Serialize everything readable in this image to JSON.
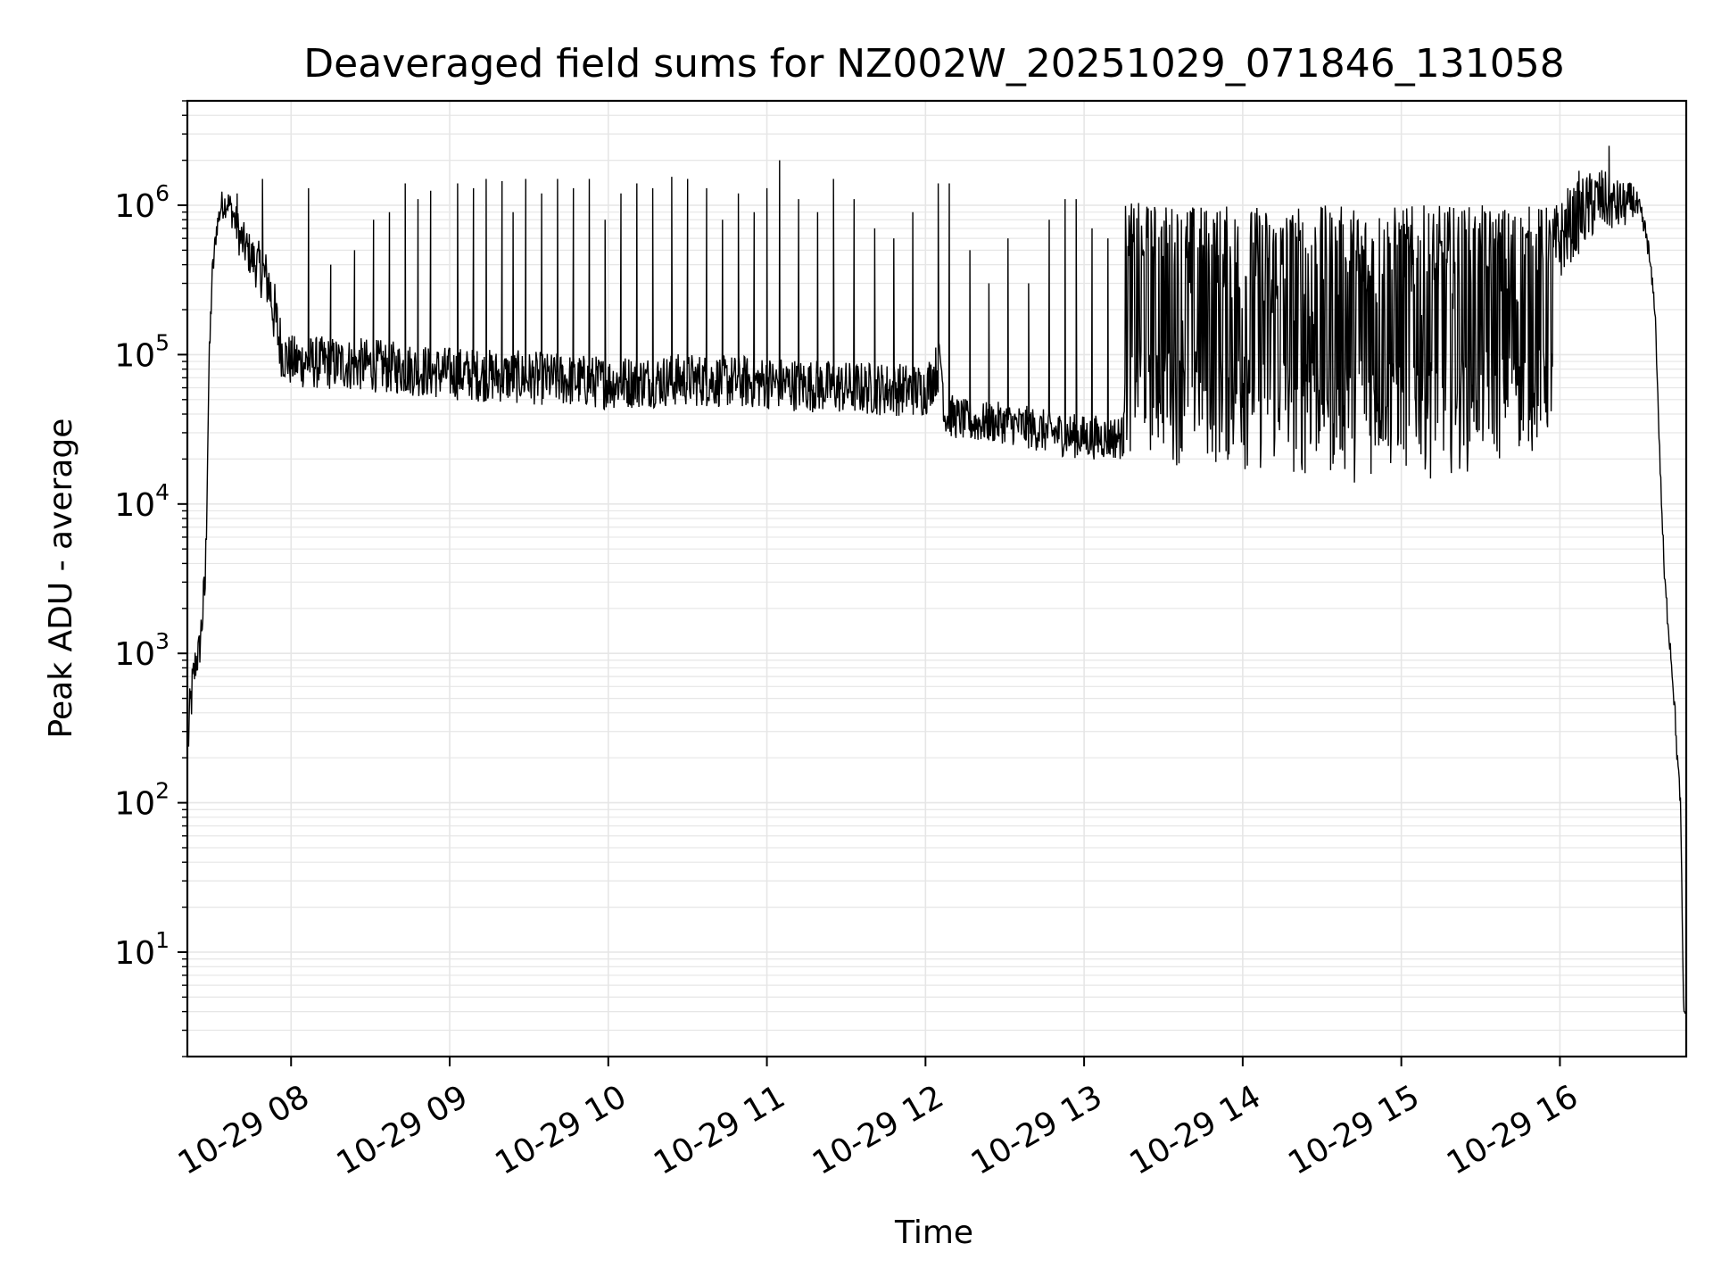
{
  "chart_data": {
    "type": "line",
    "title": "Deaveraged field sums for NZ002W_20251029_071846_131058",
    "xlabel": "Time",
    "ylabel": "Peak ADU - average",
    "yscale": "log",
    "ylim": [
      2,
      5000000
    ],
    "xlim_hours": [
      7.3461,
      16.7964
    ],
    "grid": true,
    "line_color": "#000000",
    "grid_color": "#e6e6e6",
    "x_ticks": [
      {
        "hour": 8,
        "label": "10-29 08"
      },
      {
        "hour": 9,
        "label": "10-29 09"
      },
      {
        "hour": 10,
        "label": "10-29 10"
      },
      {
        "hour": 11,
        "label": "10-29 11"
      },
      {
        "hour": 12,
        "label": "10-29 12"
      },
      {
        "hour": 13,
        "label": "10-29 13"
      },
      {
        "hour": 14,
        "label": "10-29 14"
      },
      {
        "hour": 15,
        "label": "10-29 15"
      },
      {
        "hour": 16,
        "label": "10-29 16"
      }
    ],
    "y_ticks": [
      {
        "exp": 1,
        "base": "10",
        "sup": "1"
      },
      {
        "exp": 2,
        "base": "10",
        "sup": "2"
      },
      {
        "exp": 3,
        "base": "10",
        "sup": "3"
      },
      {
        "exp": 4,
        "base": "10",
        "sup": "4"
      },
      {
        "exp": 5,
        "base": "10",
        "sup": "5"
      },
      {
        "exp": 6,
        "base": "10",
        "sup": "6"
      }
    ],
    "series": [
      {
        "name": "Peak ADU - average",
        "segments": [
          {
            "x": [
              7.35,
              7.37,
              7.4,
              7.42,
              7.46,
              7.48,
              7.5,
              7.53,
              7.56,
              7.6,
              7.63,
              7.68,
              7.75,
              7.8,
              7.86,
              7.91,
              7.95,
              8.0,
              8.5,
              9.0,
              9.5,
              10.0,
              10.5,
              11.0,
              11.5,
              12.0,
              12.1,
              12.12,
              12.3,
              12.5,
              12.8,
              13.0,
              13.25
            ],
            "y": [
              250,
              500,
              900,
              1000,
              3000,
              60000,
              300000,
              700000,
              1000000,
              1050000,
              900000,
              600000,
              450000,
              380000,
              300000,
              150000,
              100000,
              90000,
              85000,
              75000,
              70000,
              65000,
              68000,
              65000,
              60000,
              58000,
              90000,
              40000,
              35000,
              35000,
              30000,
              28000,
              28000
            ],
            "jitter": [
              0.2,
              0.2,
              0.15,
              0.15,
              0.2,
              0.15,
              0.12,
              0.08,
              0.1,
              0.1,
              0.12,
              0.15,
              0.15,
              0.18,
              0.2,
              0.25,
              0.18,
              0.18,
              0.18,
              0.18,
              0.18,
              0.18,
              0.18,
              0.18,
              0.18,
              0.18,
              0.18,
              0.15,
              0.14,
              0.14,
              0.15,
              0.15,
              0.15
            ],
            "spikes": [
              {
                "x": 7.82,
                "y": 1500000
              },
              {
                "x": 7.66,
                "y": 1200000
              },
              {
                "x": 8.11,
                "y": 1300000
              },
              {
                "x": 8.25,
                "y": 400000
              },
              {
                "x": 8.4,
                "y": 500000
              },
              {
                "x": 8.52,
                "y": 800000
              },
              {
                "x": 8.62,
                "y": 900000
              },
              {
                "x": 8.72,
                "y": 1400000
              },
              {
                "x": 8.8,
                "y": 1100000
              },
              {
                "x": 8.88,
                "y": 1250000
              },
              {
                "x": 9.05,
                "y": 1400000
              },
              {
                "x": 9.15,
                "y": 1300000
              },
              {
                "x": 9.23,
                "y": 1500000
              },
              {
                "x": 9.33,
                "y": 1450000
              },
              {
                "x": 9.4,
                "y": 900000
              },
              {
                "x": 9.48,
                "y": 1500000
              },
              {
                "x": 9.58,
                "y": 1200000
              },
              {
                "x": 9.68,
                "y": 1500000
              },
              {
                "x": 9.78,
                "y": 1300000
              },
              {
                "x": 9.88,
                "y": 1500000
              },
              {
                "x": 9.98,
                "y": 800000
              },
              {
                "x": 10.08,
                "y": 1200000
              },
              {
                "x": 10.18,
                "y": 1400000
              },
              {
                "x": 10.28,
                "y": 1300000
              },
              {
                "x": 10.4,
                "y": 1550000
              },
              {
                "x": 10.5,
                "y": 1500000
              },
              {
                "x": 10.62,
                "y": 1300000
              },
              {
                "x": 10.72,
                "y": 800000
              },
              {
                "x": 10.82,
                "y": 1200000
              },
              {
                "x": 10.92,
                "y": 900000
              },
              {
                "x": 11.0,
                "y": 1300000
              },
              {
                "x": 11.08,
                "y": 2000000
              },
              {
                "x": 11.2,
                "y": 1100000
              },
              {
                "x": 11.32,
                "y": 900000
              },
              {
                "x": 11.42,
                "y": 1500000
              },
              {
                "x": 11.55,
                "y": 1100000
              },
              {
                "x": 11.68,
                "y": 700000
              },
              {
                "x": 11.8,
                "y": 600000
              },
              {
                "x": 11.92,
                "y": 900000
              },
              {
                "x": 12.08,
                "y": 1400000
              },
              {
                "x": 12.15,
                "y": 1400000
              },
              {
                "x": 12.28,
                "y": 500000
              },
              {
                "x": 12.4,
                "y": 300000
              },
              {
                "x": 12.52,
                "y": 600000
              },
              {
                "x": 12.65,
                "y": 300000
              },
              {
                "x": 12.78,
                "y": 800000
              },
              {
                "x": 12.88,
                "y": 1100000
              },
              {
                "x": 12.95,
                "y": 1100000
              },
              {
                "x": 13.05,
                "y": 700000
              },
              {
                "x": 13.15,
                "y": 600000
              }
            ]
          },
          {
            "x": [
              13.25,
              14.0,
              14.5,
              15.0,
              15.5,
              15.96
            ],
            "lo": [
              20000,
              15000,
              13000,
              14000,
              16000,
              22000
            ],
            "hi": [
              1050000,
              1000000,
              1000000,
              1000000,
              1000000,
              1000000
            ],
            "mode": "band"
          },
          {
            "x": [
              15.96,
              16.05,
              16.15,
              16.25,
              16.35,
              16.42,
              16.46,
              16.5,
              16.55,
              16.6,
              16.63,
              16.66,
              16.7,
              16.72,
              16.74,
              16.76,
              16.77,
              16.78,
              16.79
            ],
            "y": [
              500000,
              700000,
              900000,
              1100000,
              1000000,
              1000000,
              1100000,
              900000,
              600000,
              200000,
              20000,
              3000,
              1000,
              500,
              200,
              100,
              20,
              4,
              4
            ],
            "jitter": [
              0.3,
              0.25,
              0.25,
              0.22,
              0.18,
              0.15,
              0.12,
              0.1,
              0.08,
              0.05,
              0.05,
              0.08,
              0.08,
              0.08,
              0.08,
              0.05,
              0.05,
              0.02,
              0.02
            ],
            "spikes": [
              {
                "x": 16.05,
                "y": 1300000
              },
              {
                "x": 16.12,
                "y": 1700000
              },
              {
                "x": 16.2,
                "y": 1500000
              },
              {
                "x": 16.31,
                "y": 2500000
              },
              {
                "x": 16.38,
                "y": 1400000
              }
            ]
          }
        ]
      }
    ]
  }
}
